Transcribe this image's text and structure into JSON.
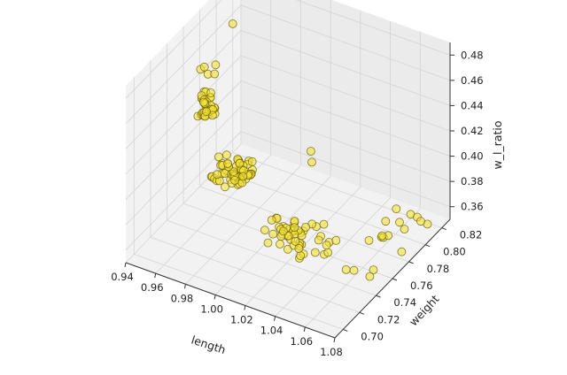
{
  "chart_data": {
    "type": "scatter",
    "projection": "3d",
    "xlabel": "length",
    "ylabel": "weight",
    "zlabel": "w_l_ratio",
    "xlim": [
      0.94,
      1.08
    ],
    "ylim": [
      0.69,
      0.83
    ],
    "zlim": [
      0.35,
      0.49
    ],
    "xticks": [
      "0.94",
      "0.96",
      "0.98",
      "1.00",
      "1.02",
      "1.04",
      "1.06",
      "1.08"
    ],
    "yticks": [
      "0.70",
      "0.72",
      "0.74",
      "0.76",
      "0.78",
      "0.80",
      "0.82"
    ],
    "zticks": [
      "0.36",
      "0.38",
      "0.40",
      "0.42",
      "0.44",
      "0.46",
      "0.48"
    ],
    "grid": true,
    "marker_color": "#f2e23a",
    "marker_edge": "#6b5a00",
    "pane_color": "#eeeeee",
    "clusters": [
      {
        "x": [
          0.945,
          0.953
        ],
        "y": [
          0.768,
          0.776
        ],
        "z": [
          0.415,
          0.432
        ],
        "n": 28
      },
      {
        "x": [
          0.968,
          0.99
        ],
        "y": [
          0.741,
          0.763
        ],
        "z": [
          0.388,
          0.406
        ],
        "n": 58
      },
      {
        "x": [
          1.01,
          1.05
        ],
        "y": [
          0.726,
          0.75
        ],
        "z": [
          0.369,
          0.384
        ],
        "n": 50
      },
      {
        "x": [
          1.045,
          1.078
        ],
        "y": [
          0.778,
          0.816
        ],
        "z": [
          0.352,
          0.363
        ],
        "n": 14
      }
    ],
    "points": [
      {
        "x": 0.94,
        "y": 0.82,
        "z": 0.452
      },
      {
        "x": 0.946,
        "y": 0.77,
        "z": 0.452
      },
      {
        "x": 0.948,
        "y": 0.771,
        "z": 0.454
      },
      {
        "x": 0.952,
        "y": 0.768,
        "z": 0.452
      },
      {
        "x": 0.955,
        "y": 0.772,
        "z": 0.458
      },
      {
        "x": 0.957,
        "y": 0.767,
        "z": 0.455
      },
      {
        "x": 0.95,
        "y": 0.776,
        "z": 0.418
      },
      {
        "x": 0.949,
        "y": 0.77,
        "z": 0.416
      },
      {
        "x": 0.952,
        "y": 0.774,
        "z": 0.42
      },
      {
        "x": 0.954,
        "y": 0.77,
        "z": 0.419
      },
      {
        "x": 0.947,
        "y": 0.772,
        "z": 0.425
      },
      {
        "x": 0.951,
        "y": 0.768,
        "z": 0.422
      },
      {
        "x": 1.0,
        "y": 0.806,
        "z": 0.386
      },
      {
        "x": 1.004,
        "y": 0.8,
        "z": 0.383
      },
      {
        "x": 1.06,
        "y": 0.74,
        "z": 0.362
      },
      {
        "x": 1.063,
        "y": 0.744,
        "z": 0.36
      },
      {
        "x": 1.07,
        "y": 0.755,
        "z": 0.356
      },
      {
        "x": 1.072,
        "y": 0.747,
        "z": 0.357
      }
    ]
  }
}
